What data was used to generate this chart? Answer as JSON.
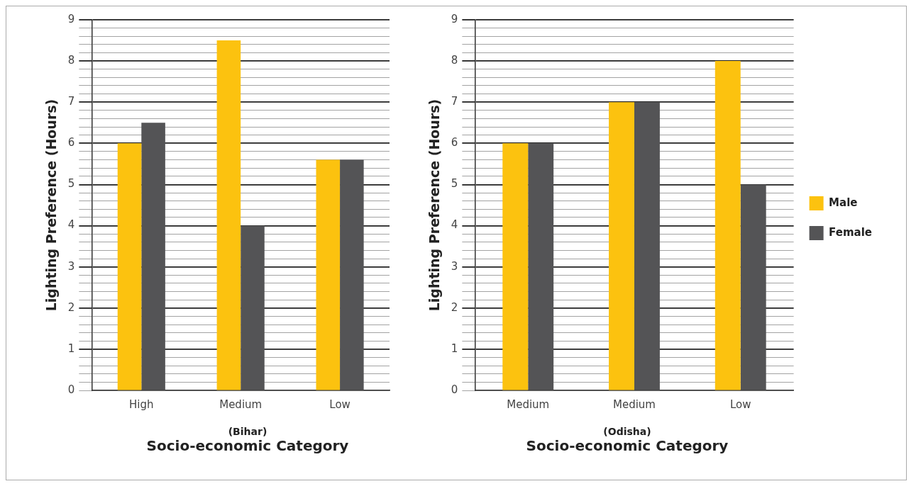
{
  "chart_data": [
    {
      "type": "bar",
      "categories": [
        "High",
        "Medium",
        "Low"
      ],
      "ylabel": "Lighting Preference (Hours)",
      "xlabel": "Socio-economic Category",
      "annotations": [
        "(Bihar)"
      ],
      "ylim": [
        0,
        9
      ],
      "yticks": [
        0,
        {
          "value": 0.2,
          "label": null
        },
        {
          "value": 0.4,
          "label": null
        },
        {
          "value": 0.6,
          "label": null
        },
        {
          "value": 0.8,
          "label": null
        },
        1,
        {
          "value": 1.2,
          "label": null
        },
        {
          "value": 1.4,
          "label": null
        },
        {
          "value": 1.6,
          "label": null
        },
        {
          "value": 1.8,
          "label": null
        },
        2,
        {
          "value": 2.2,
          "label": null
        },
        {
          "value": 2.4,
          "label": null
        },
        {
          "value": 2.6,
          "label": null
        },
        {
          "value": 2.8,
          "label": null
        },
        3,
        {
          "value": 3.2,
          "label": null
        },
        {
          "value": 3.4,
          "label": null
        },
        {
          "value": 3.6,
          "label": null
        },
        {
          "value": 3.8,
          "label": null
        },
        4,
        {
          "value": 4.2,
          "label": null
        },
        {
          "value": 4.4,
          "label": null
        },
        {
          "value": 4.6,
          "label": null
        },
        {
          "value": 4.8,
          "label": null
        },
        5,
        {
          "value": 5.2,
          "label": null
        },
        {
          "value": 5.4,
          "label": null
        },
        {
          "value": 5.6,
          "label": null
        },
        {
          "value": 5.8,
          "label": null
        },
        6,
        {
          "value": 6.2,
          "label": null
        },
        {
          "value": 6.4,
          "label": null
        },
        {
          "value": 6.6,
          "label": null
        },
        {
          "value": 6.8,
          "label": null
        },
        7,
        {
          "value": 7.2,
          "label": null
        },
        {
          "value": 7.4,
          "label": null
        },
        {
          "value": 7.6,
          "label": null
        },
        {
          "value": 7.8,
          "label": null
        },
        8,
        {
          "value": 8.2,
          "label": null
        },
        {
          "value": 8.4,
          "label": null
        },
        {
          "value": 8.6,
          "label": null
        },
        {
          "value": 8.8,
          "label": null
        },
        9
      ],
      "grid": "y",
      "legend": false,
      "series": [
        {
          "color": "#fcc20f",
          "values": [
            6,
            8.5,
            5.6
          ]
        },
        {
          "color": "#545456",
          "values": [
            6.5,
            4,
            5.6
          ]
        }
      ]
    },
    {
      "type": "bar",
      "categories": [
        "Medium",
        "Medium",
        "Low"
      ],
      "ylabel": "Lighting Preference (Hours)",
      "xlabel": "Socio-economic Category",
      "annotations": [
        "(Odisha)"
      ],
      "ylim": [
        0,
        9
      ],
      "yticks": [
        0,
        {
          "value": 0.2,
          "label": null
        },
        {
          "value": 0.4,
          "label": null
        },
        {
          "value": 0.6,
          "label": null
        },
        {
          "value": 0.8,
          "label": null
        },
        1,
        {
          "value": 1.2,
          "label": null
        },
        {
          "value": 1.4,
          "label": null
        },
        {
          "value": 1.6,
          "label": null
        },
        {
          "value": 1.8,
          "label": null
        },
        2,
        {
          "value": 2.2,
          "label": null
        },
        {
          "value": 2.4,
          "label": null
        },
        {
          "value": 2.6,
          "label": null
        },
        {
          "value": 2.8,
          "label": null
        },
        3,
        {
          "value": 3.2,
          "label": null
        },
        {
          "value": 3.4,
          "label": null
        },
        {
          "value": 3.6,
          "label": null
        },
        {
          "value": 3.8,
          "label": null
        },
        4,
        {
          "value": 4.2,
          "label": null
        },
        {
          "value": 4.4,
          "label": null
        },
        {
          "value": 4.6,
          "label": null
        },
        {
          "value": 4.8,
          "label": null
        },
        5,
        {
          "value": 5.2,
          "label": null
        },
        {
          "value": 5.4,
          "label": null
        },
        {
          "value": 5.6,
          "label": null
        },
        {
          "value": 5.8,
          "label": null
        },
        6,
        {
          "value": 6.2,
          "label": null
        },
        {
          "value": 6.4,
          "label": null
        },
        {
          "value": 6.6,
          "label": null
        },
        {
          "value": 6.8,
          "label": null
        },
        7,
        {
          "value": 7.2,
          "label": null
        },
        {
          "value": 7.4,
          "label": null
        },
        {
          "value": 7.6,
          "label": null
        },
        {
          "value": 7.8,
          "label": null
        },
        8,
        {
          "value": 8.2,
          "label": null
        },
        {
          "value": 8.4,
          "label": null
        },
        {
          "value": 8.6,
          "label": null
        },
        {
          "value": 8.8,
          "label": null
        },
        9
      ],
      "grid": "y",
      "legend": "right",
      "series": [
        {
          "name": "Male",
          "color": "#fcc20f",
          "values": [
            6,
            7,
            8
          ]
        },
        {
          "name": "Female",
          "color": "#545456",
          "values": [
            6,
            7,
            5
          ]
        }
      ]
    }
  ]
}
